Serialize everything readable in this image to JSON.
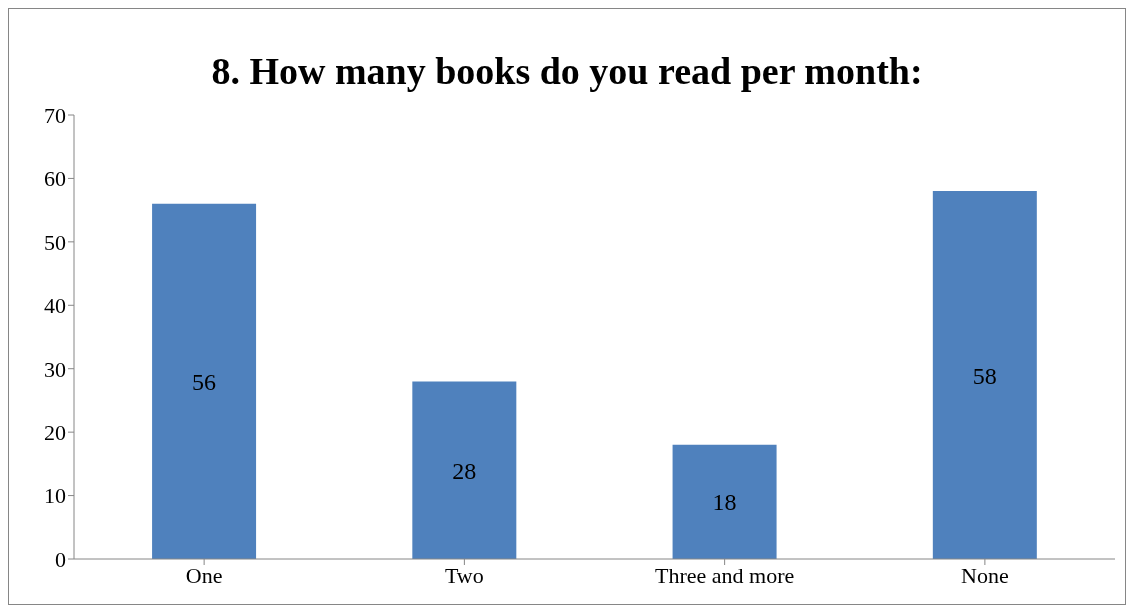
{
  "chart_data": {
    "type": "bar",
    "title": "8. How many books do you read per month:",
    "categories": [
      "One",
      "Two",
      "Three and more",
      "None"
    ],
    "values": [
      56,
      28,
      18,
      58
    ],
    "color": "#4f81bd",
    "ylim": [
      0,
      70
    ],
    "yticks": [
      0,
      10,
      20,
      30,
      40,
      50,
      60,
      70
    ],
    "grid": false,
    "legend": false,
    "data_labels": true
  }
}
